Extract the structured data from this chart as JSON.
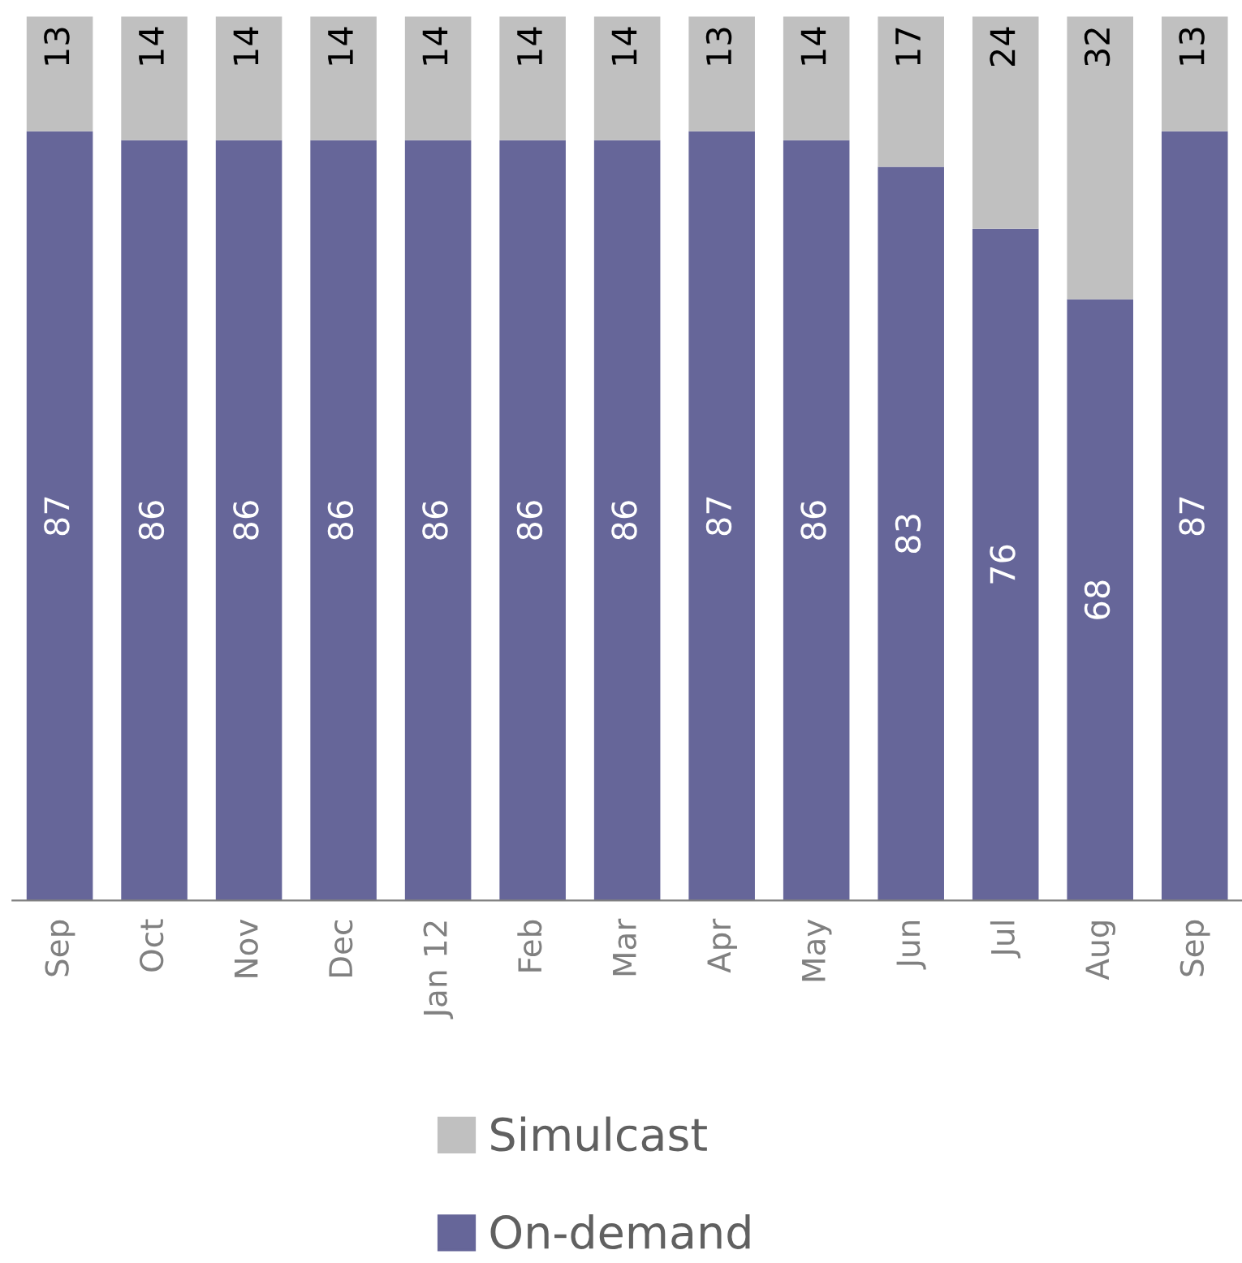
{
  "chart_data": {
    "type": "bar",
    "stacked": true,
    "data_labels": true,
    "legend": "bottom",
    "grid": false,
    "categories": [
      "Sep",
      "Oct",
      "Nov",
      "Dec",
      "Jan 12",
      "Feb",
      "Mar",
      "Apr",
      "May",
      "Jun",
      "Jul",
      "Aug",
      "Sep"
    ],
    "series": [
      {
        "name": "On-demand",
        "color": "#666699",
        "values": [
          87,
          86,
          86,
          86,
          86,
          86,
          86,
          87,
          86,
          83,
          76,
          68,
          87
        ]
      },
      {
        "name": "Simulcast",
        "color": "#c0c0c0",
        "values": [
          13,
          14,
          14,
          14,
          14,
          14,
          14,
          13,
          14,
          17,
          24,
          32,
          13
        ]
      }
    ]
  }
}
